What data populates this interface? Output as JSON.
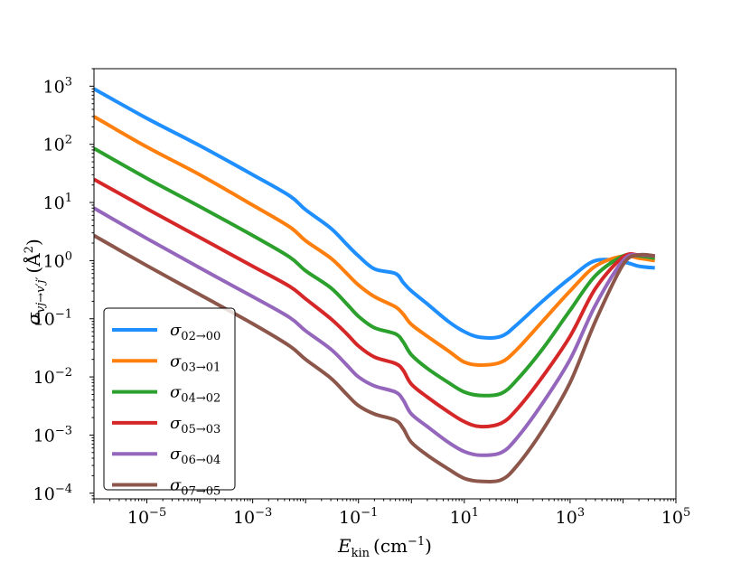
{
  "chart_data": {
    "type": "line",
    "xscale": "log",
    "yscale": "log",
    "xlim": [
      1e-06,
      100000
    ],
    "ylim": [
      8e-05,
      2000
    ],
    "xlabel": {
      "base": "E",
      "sub": "kin",
      "units": "(cm",
      "exp": "−1",
      "close": ")"
    },
    "ylabel": {
      "base": "σ",
      "sub": "vj→v′j′",
      "units": "(Å",
      "exp": "2",
      "close": ")"
    },
    "x_ticks": [
      {
        "value": 1e-05,
        "base": "10",
        "exp": "−5"
      },
      {
        "value": 0.001,
        "base": "10",
        "exp": "−3"
      },
      {
        "value": 0.1,
        "base": "10",
        "exp": "−1"
      },
      {
        "value": 10,
        "base": "10",
        "exp": "1"
      },
      {
        "value": 1000,
        "base": "10",
        "exp": "3"
      },
      {
        "value": 100000,
        "base": "10",
        "exp": "5"
      }
    ],
    "y_ticks": [
      {
        "value": 0.0001,
        "base": "10",
        "exp": "−4"
      },
      {
        "value": 0.001,
        "base": "10",
        "exp": "−3"
      },
      {
        "value": 0.01,
        "base": "10",
        "exp": "−2"
      },
      {
        "value": 0.1,
        "base": "10",
        "exp": "−1"
      },
      {
        "value": 1,
        "base": "10",
        "exp": "0"
      },
      {
        "value": 10,
        "base": "10",
        "exp": "1"
      },
      {
        "value": 100,
        "base": "10",
        "exp": "2"
      },
      {
        "value": 1000,
        "base": "10",
        "exp": "3"
      }
    ],
    "legend_position": "lower-left",
    "series": [
      {
        "name": "σ02→00",
        "sym": "σ",
        "sub": "02→00",
        "color": "#1f8fff",
        "x": [
          1e-06,
          1e-05,
          0.0001,
          0.001,
          0.005,
          0.01,
          0.03,
          0.06,
          0.1,
          0.2,
          0.5,
          0.7,
          1,
          2,
          5,
          10,
          20,
          50,
          100,
          300,
          1000,
          3000,
          10000,
          20000,
          40000
        ],
        "y": [
          900,
          280,
          95,
          30,
          13,
          7.5,
          3.6,
          1.9,
          1.2,
          0.72,
          0.6,
          0.42,
          0.3,
          0.18,
          0.09,
          0.06,
          0.048,
          0.05,
          0.08,
          0.2,
          0.5,
          1.0,
          0.95,
          0.8,
          0.75
        ]
      },
      {
        "name": "σ03→01",
        "sym": "σ",
        "sub": "03→01",
        "color": "#ff7f0e",
        "x": [
          1e-06,
          1e-05,
          0.0001,
          0.001,
          0.005,
          0.01,
          0.03,
          0.06,
          0.1,
          0.2,
          0.5,
          0.7,
          1,
          2,
          5,
          10,
          20,
          50,
          100,
          300,
          1000,
          3000,
          10000,
          20000,
          40000
        ],
        "y": [
          300,
          90,
          30,
          9,
          3.8,
          2.2,
          1.1,
          0.6,
          0.38,
          0.24,
          0.16,
          0.12,
          0.08,
          0.05,
          0.028,
          0.018,
          0.016,
          0.018,
          0.03,
          0.09,
          0.3,
          0.8,
          1.2,
          1.1,
          1.0
        ]
      },
      {
        "name": "σ04→02",
        "sym": "σ",
        "sub": "04→02",
        "color": "#2ca02c",
        "x": [
          1e-06,
          1e-05,
          0.0001,
          0.001,
          0.005,
          0.01,
          0.03,
          0.06,
          0.1,
          0.2,
          0.5,
          0.7,
          1,
          2,
          5,
          10,
          20,
          50,
          100,
          300,
          1000,
          3000,
          10000,
          20000,
          40000
        ],
        "y": [
          85,
          26,
          8.5,
          2.7,
          1.15,
          0.67,
          0.34,
          0.18,
          0.11,
          0.07,
          0.055,
          0.04,
          0.024,
          0.014,
          0.008,
          0.0055,
          0.0048,
          0.0052,
          0.009,
          0.03,
          0.14,
          0.55,
          1.2,
          1.2,
          1.1
        ]
      },
      {
        "name": "σ05→03",
        "sym": "σ",
        "sub": "05→03",
        "color": "#d62728",
        "x": [
          1e-06,
          1e-05,
          0.0001,
          0.001,
          0.005,
          0.01,
          0.03,
          0.06,
          0.1,
          0.2,
          0.5,
          0.7,
          1,
          2,
          5,
          10,
          20,
          50,
          100,
          300,
          1000,
          3000,
          10000,
          20000,
          40000
        ],
        "y": [
          25,
          7.8,
          2.5,
          0.8,
          0.36,
          0.22,
          0.1,
          0.055,
          0.034,
          0.022,
          0.017,
          0.013,
          0.0075,
          0.0045,
          0.0025,
          0.0017,
          0.0014,
          0.0016,
          0.0028,
          0.01,
          0.05,
          0.33,
          1.15,
          1.25,
          1.2
        ]
      },
      {
        "name": "σ06→04",
        "sym": "σ",
        "sub": "06→04",
        "color": "#9467bd",
        "x": [
          1e-06,
          1e-05,
          0.0001,
          0.001,
          0.005,
          0.01,
          0.03,
          0.06,
          0.1,
          0.2,
          0.5,
          0.7,
          1,
          2,
          5,
          10,
          20,
          50,
          100,
          300,
          1000,
          3000,
          10000,
          20000,
          40000
        ],
        "y": [
          8,
          2.4,
          0.75,
          0.24,
          0.105,
          0.062,
          0.03,
          0.016,
          0.01,
          0.007,
          0.0055,
          0.004,
          0.0023,
          0.0014,
          0.00075,
          0.00052,
          0.00045,
          0.0005,
          0.0009,
          0.0035,
          0.02,
          0.17,
          1.0,
          1.25,
          1.2
        ]
      },
      {
        "name": "σ07→05",
        "sym": "σ",
        "sub": "07→05",
        "color": "#8c564b",
        "x": [
          1e-06,
          1e-05,
          0.0001,
          0.001,
          0.005,
          0.01,
          0.03,
          0.06,
          0.1,
          0.2,
          0.5,
          0.7,
          1,
          2,
          5,
          10,
          20,
          50,
          100,
          300,
          1000,
          3000,
          10000,
          20000,
          40000
        ],
        "y": [
          2.7,
          0.82,
          0.26,
          0.082,
          0.034,
          0.02,
          0.0095,
          0.005,
          0.0032,
          0.0023,
          0.0018,
          0.0013,
          0.00075,
          0.00045,
          0.00026,
          0.00018,
          0.00016,
          0.00017,
          0.0003,
          0.0012,
          0.008,
          0.09,
          0.85,
          1.25,
          1.2
        ]
      }
    ]
  }
}
